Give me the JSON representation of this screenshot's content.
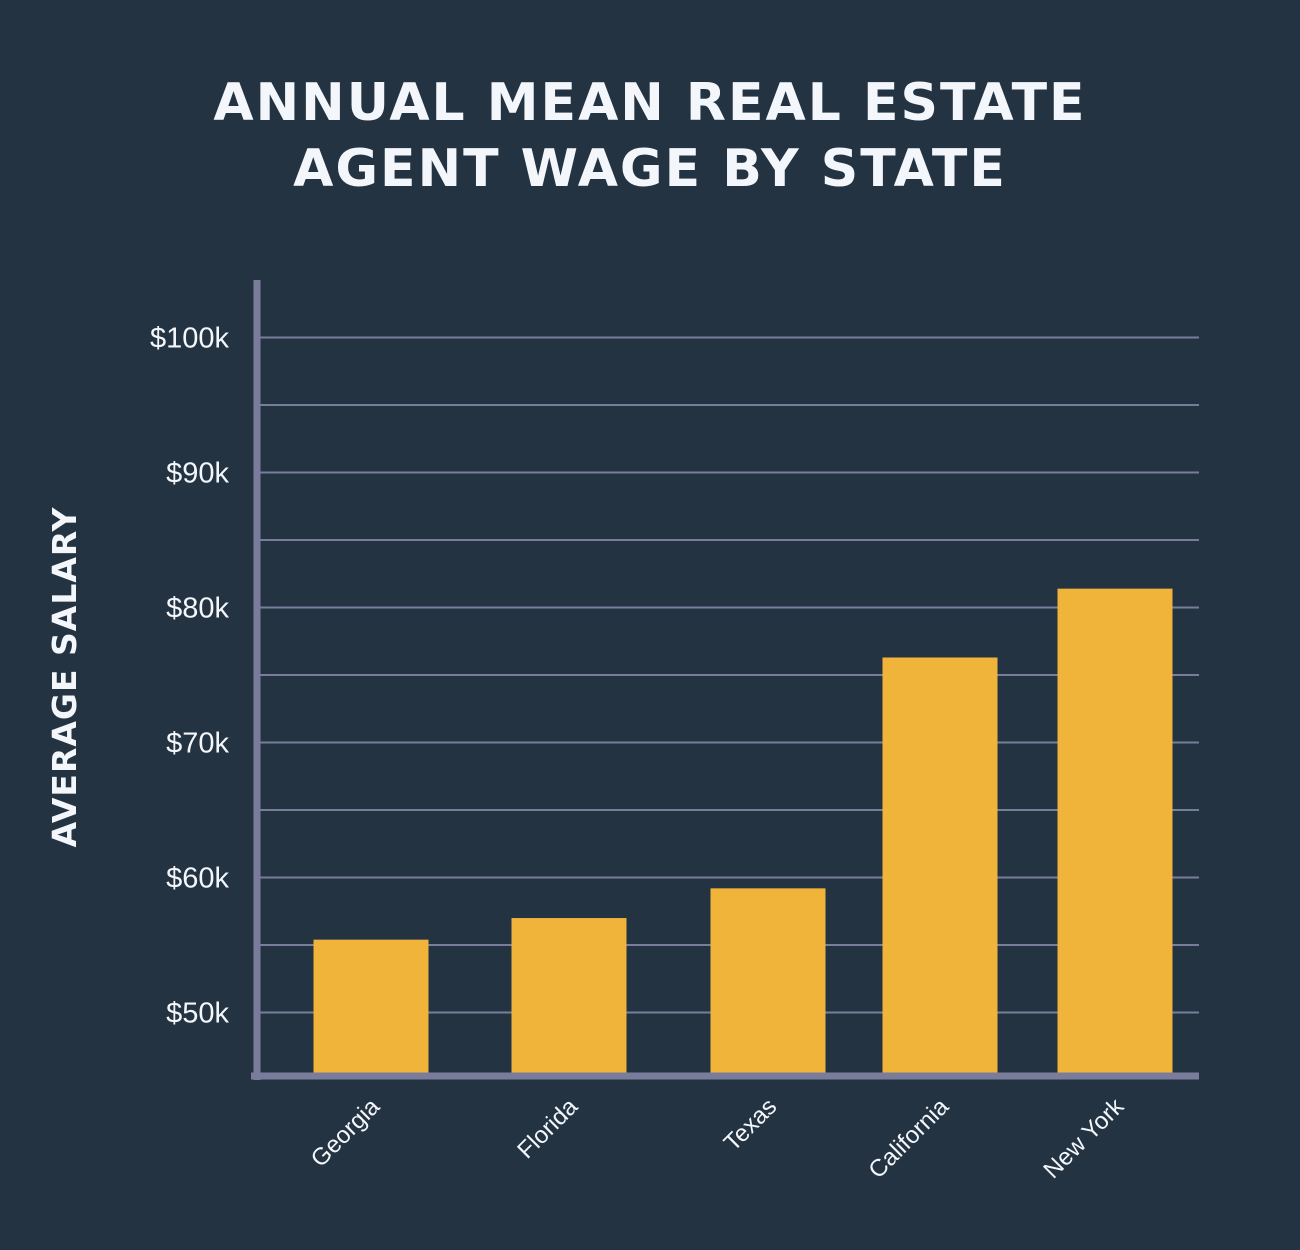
{
  "title": {
    "line1": "ANNUAL MEAN REAL ESTATE",
    "line2": "AGENT WAGE BY STATE"
  },
  "colors": {
    "background": "#233341",
    "bar": "#f1b43a",
    "axis": "#7a7c9c",
    "grid": "#7a7c9c",
    "text": "#f3f6fb"
  },
  "chart_data": {
    "type": "bar",
    "title": "ANNUAL MEAN REAL ESTATE AGENT WAGE BY STATE",
    "xlabel": "",
    "ylabel": "AVERAGE SALARY",
    "categories": [
      "Georgia",
      "Florida",
      "Texas",
      "California",
      "New York"
    ],
    "values": [
      55.4,
      57.0,
      59.2,
      76.3,
      81.4
    ],
    "unit": "$k",
    "ylim": [
      45.3,
      100
    ],
    "yticks": [
      50,
      60,
      70,
      80,
      90,
      100
    ],
    "ytick_labels": [
      "$50k",
      "$60k",
      "$70k",
      "$80k",
      "$90k",
      "$100k"
    ],
    "minor_gridlines": [
      55,
      65,
      75,
      85,
      95
    ],
    "grid": true,
    "legend": "none"
  }
}
